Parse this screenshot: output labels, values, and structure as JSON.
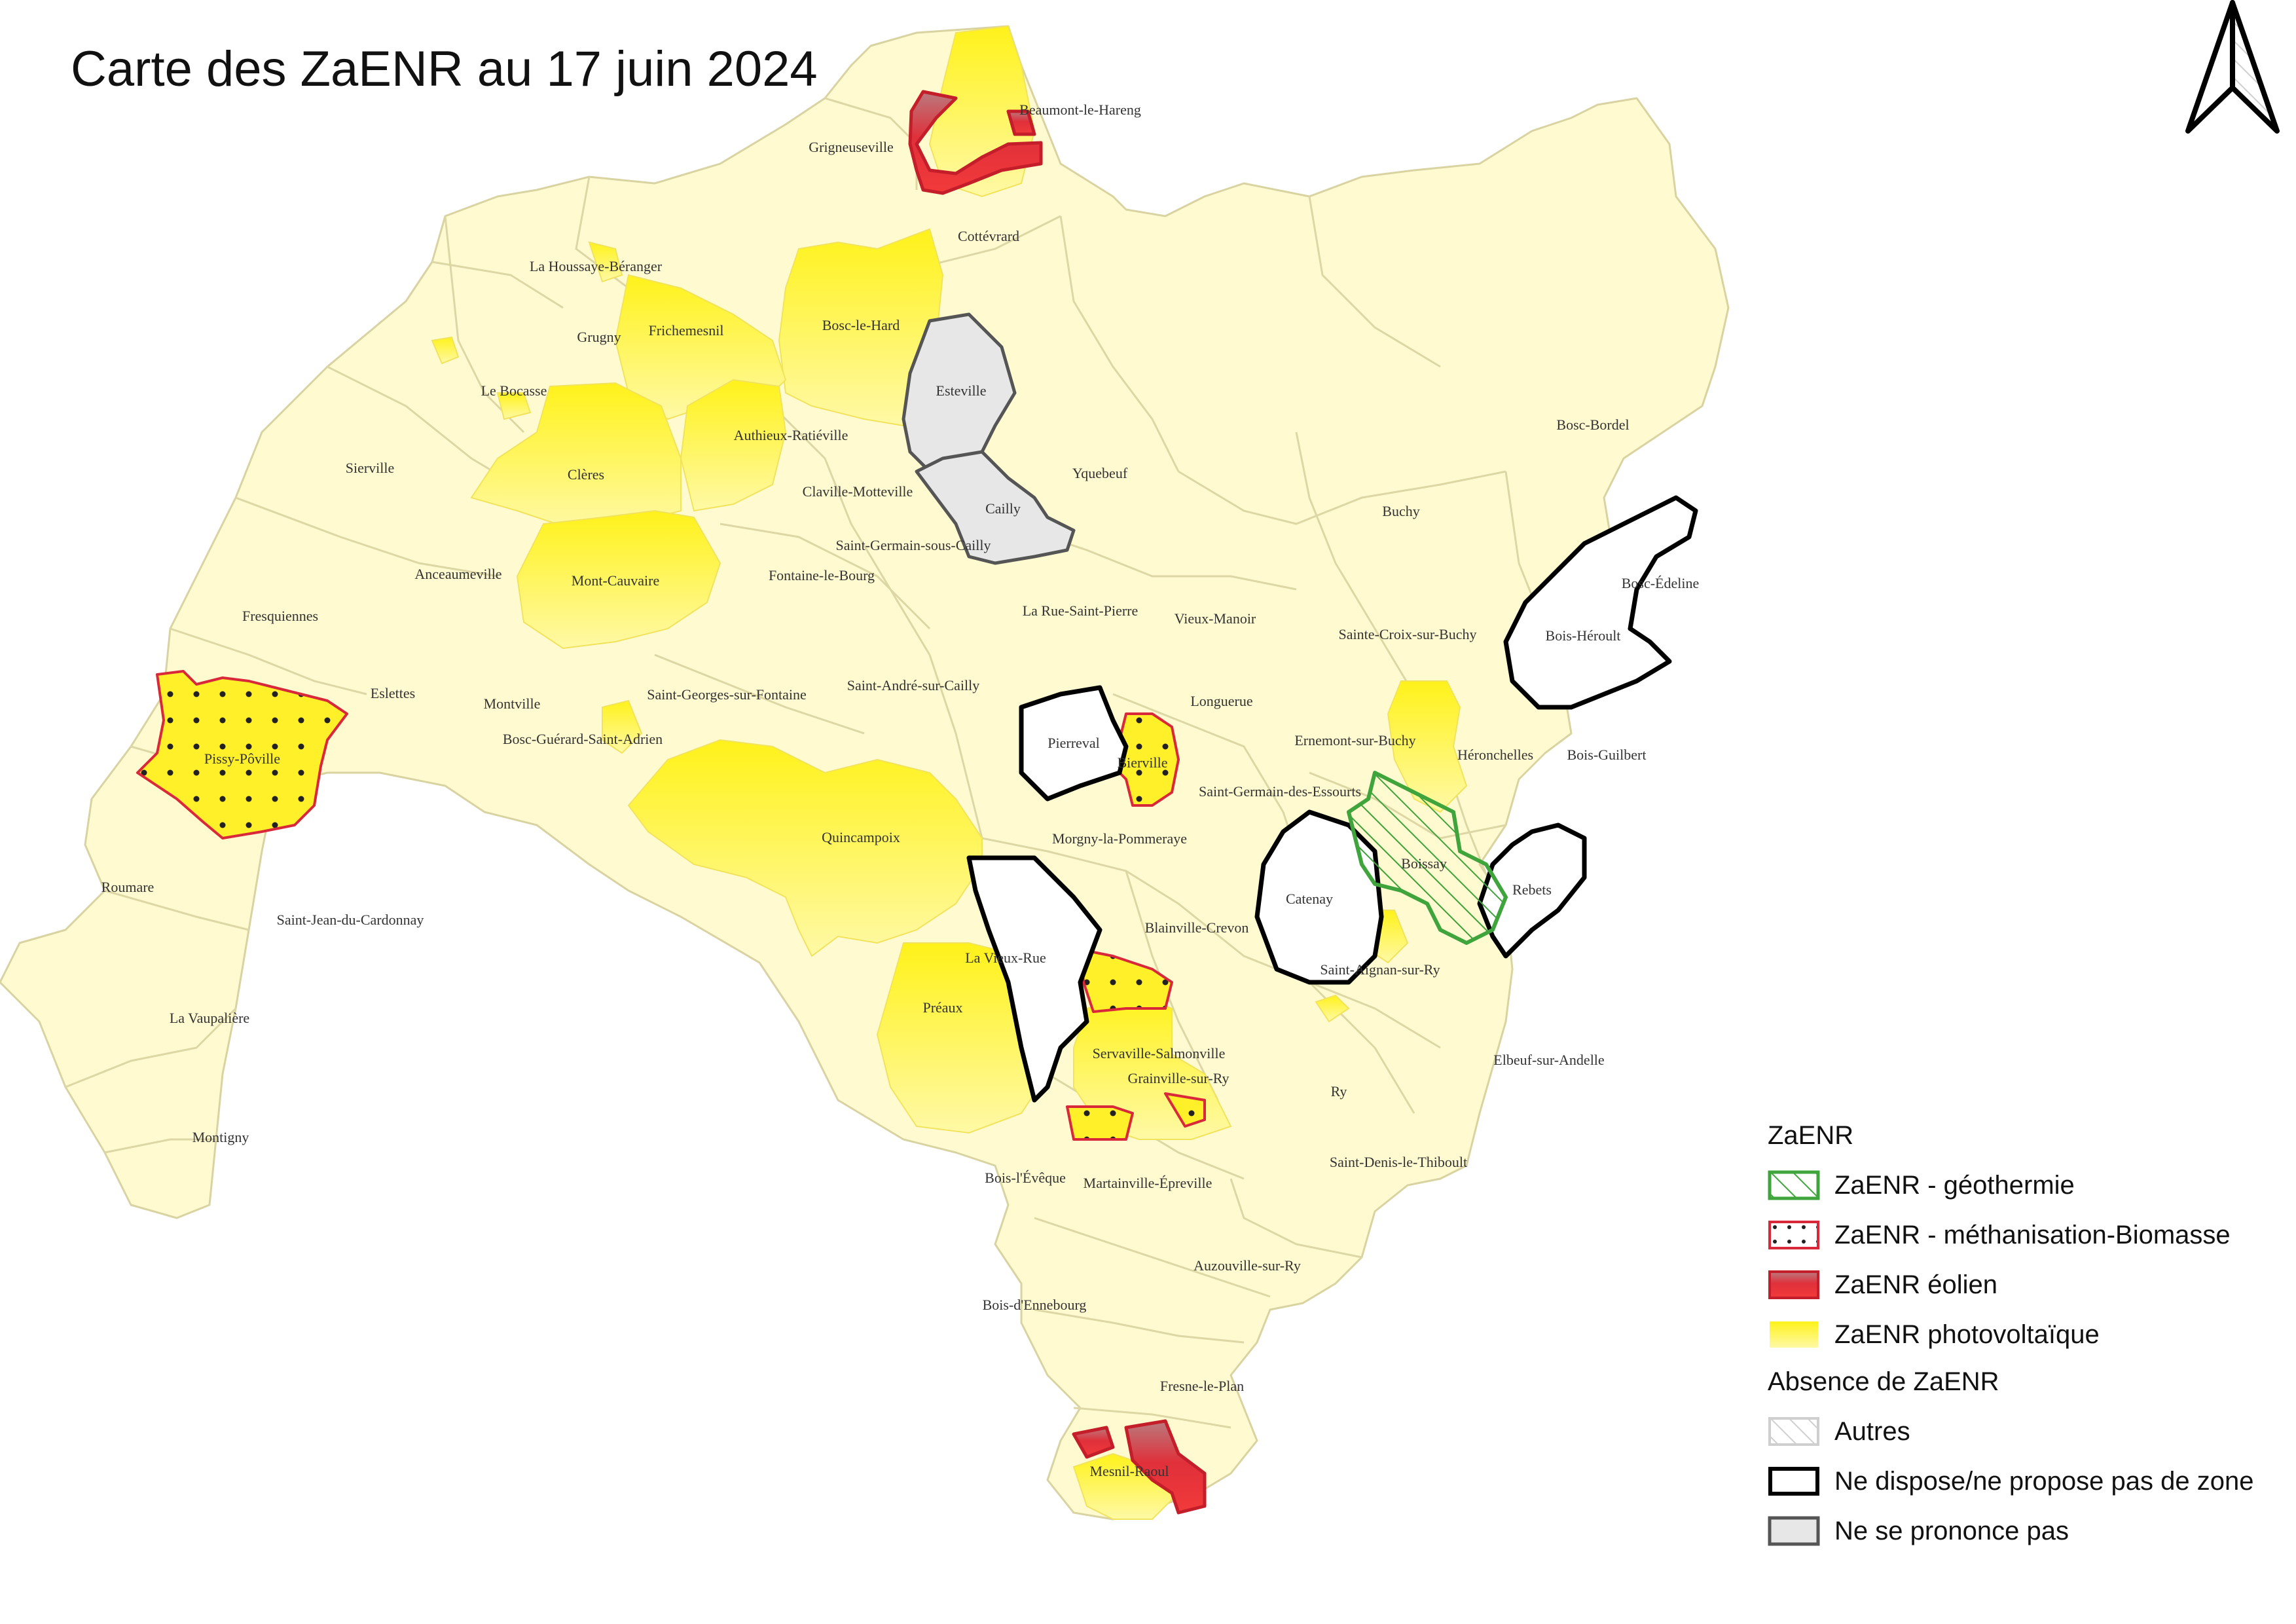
{
  "title": "Carte des ZaENR au 17 juin 2024",
  "colors": {
    "commune_fill": "#fffad0",
    "commune_border": "#d9d3a2",
    "photovoltaique": "#ffee33",
    "eolien": "#d9262f",
    "methanisation_border": "#d8283a",
    "geothermie": "#3ea43b",
    "ne_dispose_border": "#000000",
    "ne_se_prononce_fill": "#e7e7e7"
  },
  "communes": [
    "Beaumont-le-Hareng",
    "Grigneuseville",
    "Cottévrard",
    "La Houssaye-Béranger",
    "Grugny",
    "Frichemesnil",
    "Bosc-le-Hard",
    "Esteville",
    "Le Bocasse",
    "Authieux-Ratiéville",
    "Sierville",
    "Clères",
    "Claville-Motteville",
    "Yquebeuf",
    "Cailly",
    "Bosc-Bordel",
    "Buchy",
    "Anceaumeville",
    "Mont-Cauvaire",
    "Saint-Germain-sous-Cailly",
    "Fontaine-le-Bourg",
    "Bosc-Édeline",
    "Fresquiennes",
    "La Rue-Saint-Pierre",
    "Vieux-Manoir",
    "Sainte-Croix-sur-Buchy",
    "Bois-Héroult",
    "Eslettes",
    "Saint-Georges-sur-Fontaine",
    "Saint-André-sur-Cailly",
    "Montville",
    "Longuerue",
    "Ernemont-sur-Buchy",
    "Héronchelles",
    "Bois-Guilbert",
    "Pissy-Pôville",
    "Bosc-Guérard-Saint-Adrien",
    "Pierreval",
    "Bierville",
    "Saint-Germain-des-Essourts",
    "Quincampoix",
    "Morgny-la-Pommeraye",
    "Boissay",
    "Rebets",
    "Catenay",
    "Roumare",
    "Saint-Jean-du-Cardonnay",
    "Blainville-Crevon",
    "La Vieux-Rue",
    "Saint-Aignan-sur-Ry",
    "La Vaupalière",
    "Préaux",
    "Servaville-Salmonville",
    "Elbeuf-sur-Andelle",
    "Grainville-sur-Ry",
    "Ry",
    "Montigny",
    "Saint-Denis-le-Thiboult",
    "Bois-l'Évêque",
    "Martainville-Épreville",
    "Auzouville-sur-Ry",
    "Bois-d'Ennebourg",
    "Fresne-le-Plan",
    "Mesnil-Raoul"
  ],
  "legend": {
    "group1_title": "ZaENR",
    "geothermie": "ZaENR - géothermie",
    "methanisation": "ZaENR - méthanisation-Biomasse",
    "eolien": "ZaENR éolien",
    "photovoltaique": "ZaENR photovoltaïque",
    "group2_title": "Absence de ZaENR",
    "autres": "Autres",
    "ne_dispose": "Ne dispose/ne propose pas de zone",
    "ne_se_prononce": "Ne se prononce pas"
  },
  "north_arrow_icon": "north-arrow-icon"
}
